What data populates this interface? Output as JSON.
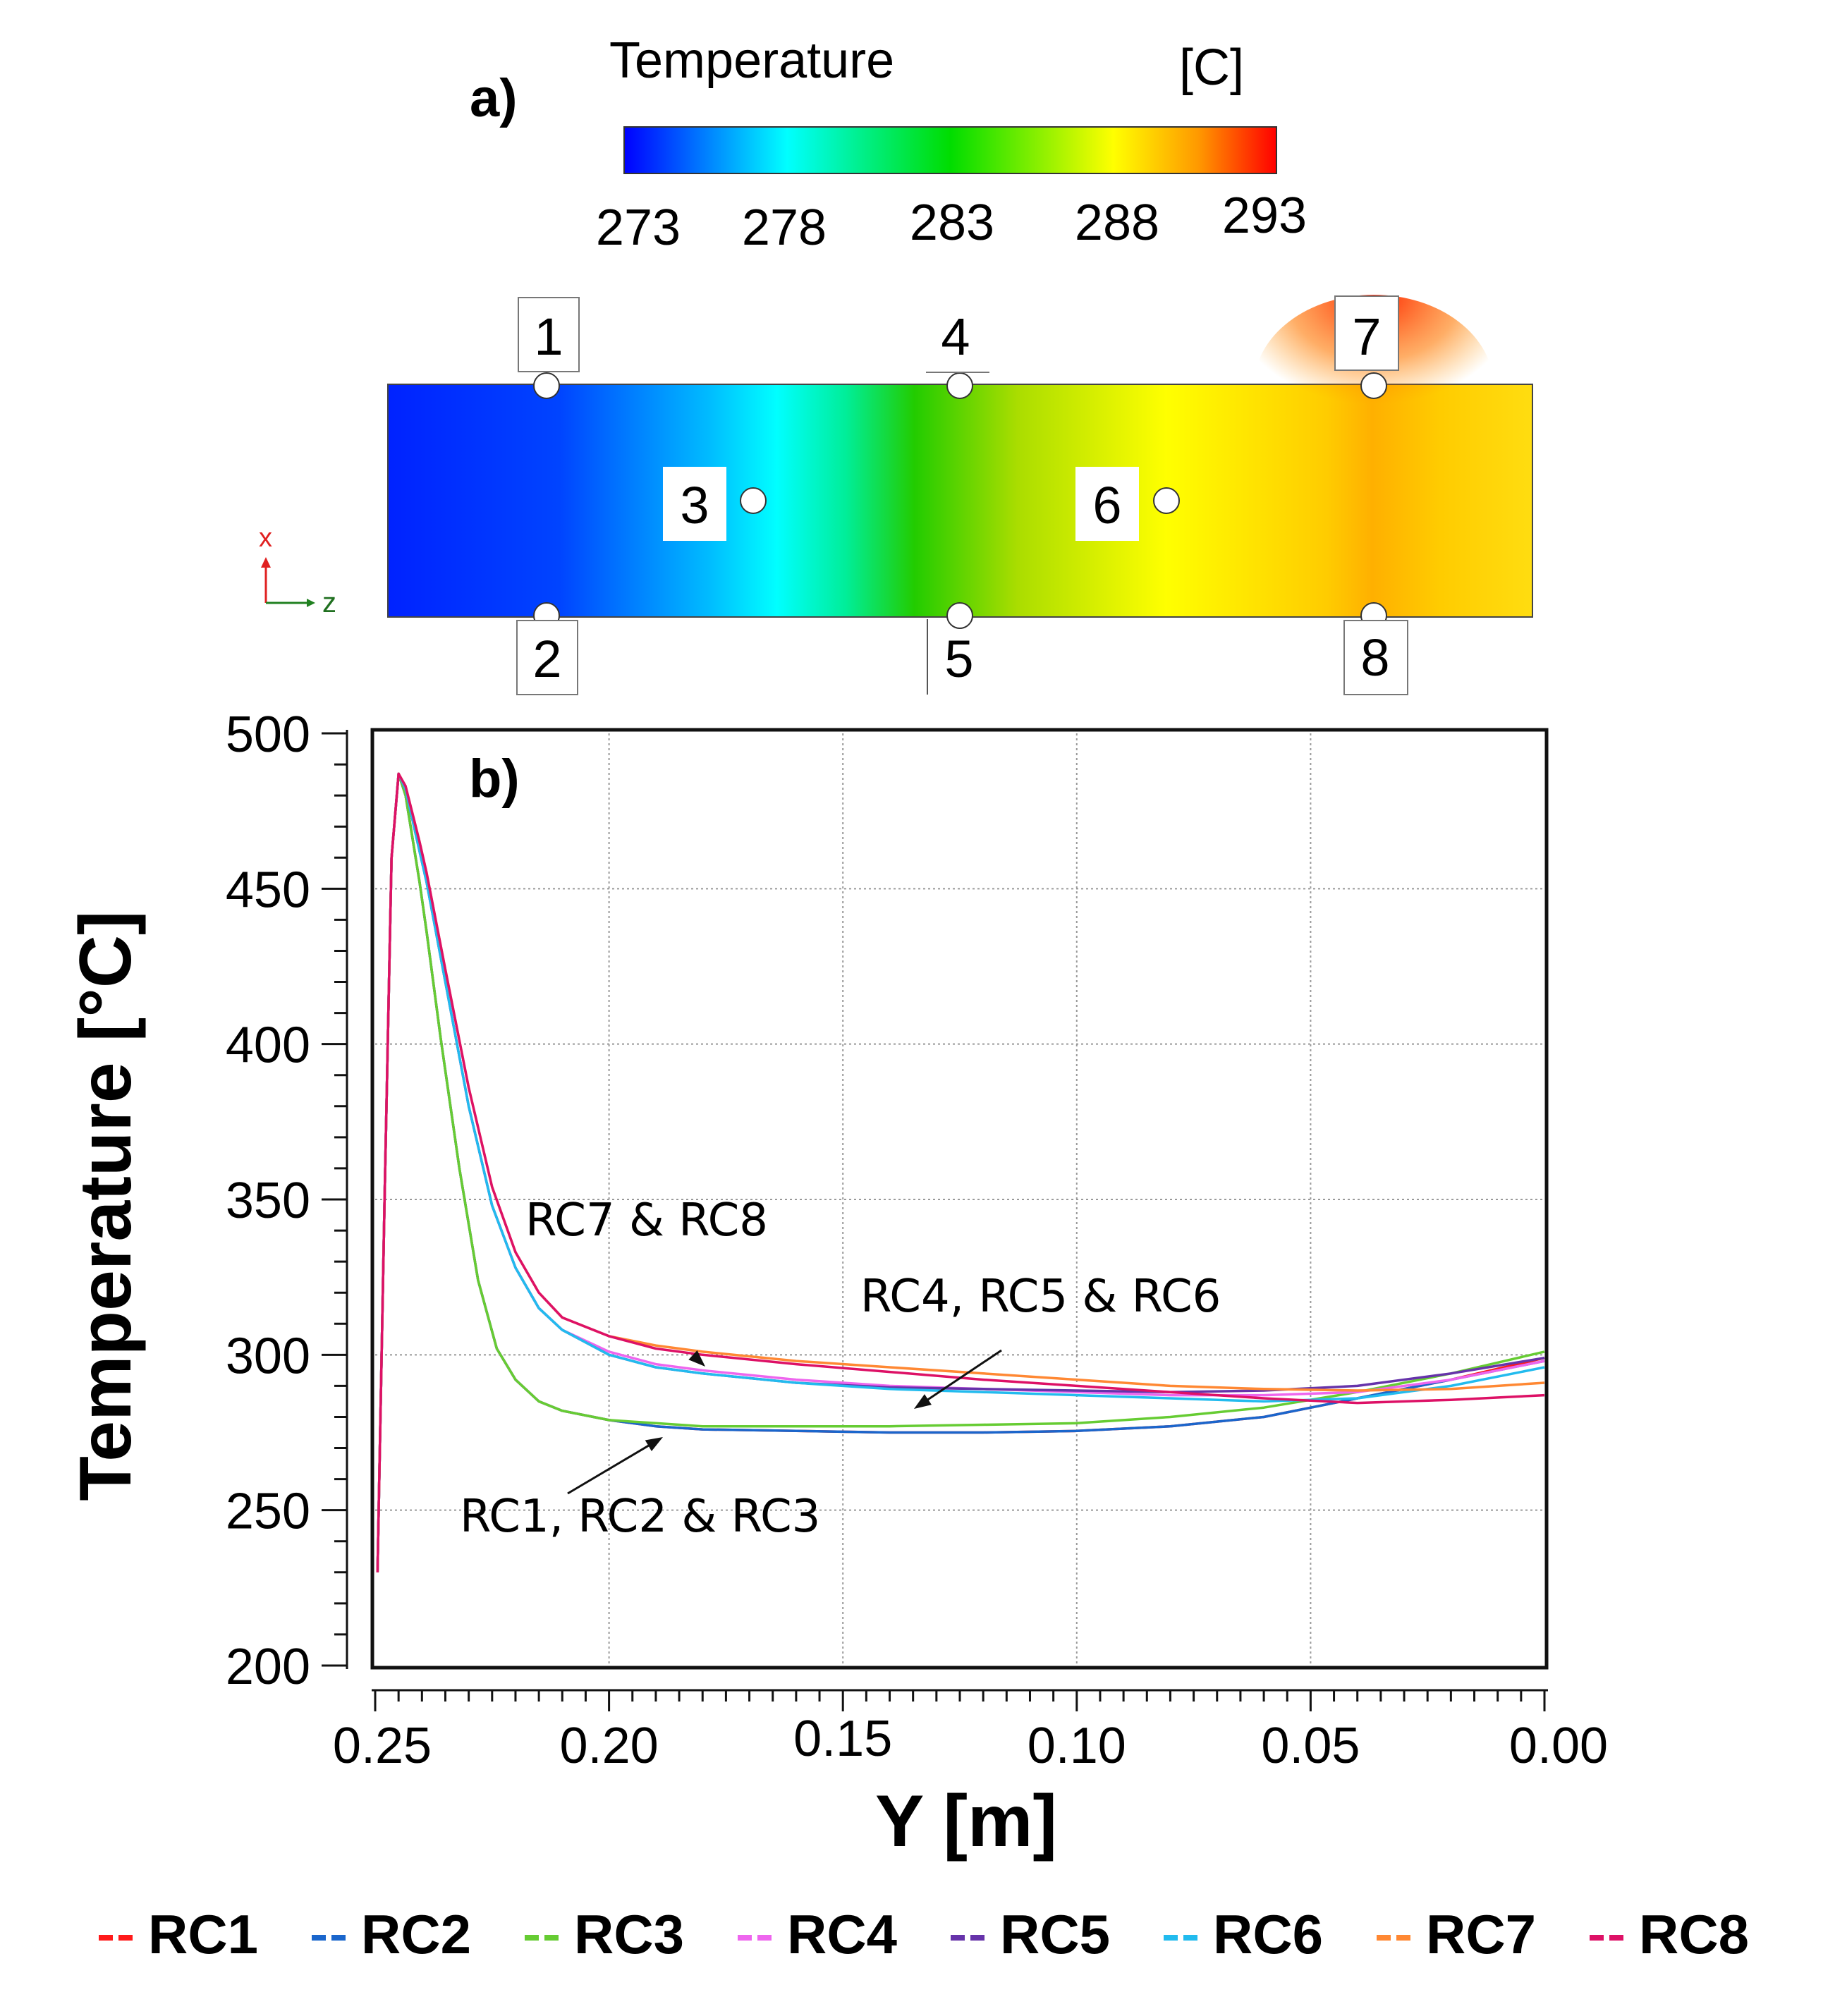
{
  "panel_a": {
    "label": "a)",
    "colorbar": {
      "title": "Temperature",
      "unit": "[C]",
      "ticks": [
        "273",
        "278",
        "283",
        "288",
        "293"
      ],
      "range": [
        273,
        293
      ],
      "colors": [
        "#0000ff",
        "#00ffff",
        "#00e000",
        "#ffff00",
        "#ff8000",
        "#ff0000"
      ]
    },
    "axis_labels": {
      "x": "x",
      "z": "z"
    },
    "sensors": [
      {
        "id": "1",
        "label": "1"
      },
      {
        "id": "2",
        "label": "2"
      },
      {
        "id": "3",
        "label": "3"
      },
      {
        "id": "4",
        "label": "4"
      },
      {
        "id": "5",
        "label": "5"
      },
      {
        "id": "6",
        "label": "6"
      },
      {
        "id": "7",
        "label": "7"
      },
      {
        "id": "8",
        "label": "8"
      }
    ]
  },
  "chart_data": {
    "type": "line",
    "panel_label": "b)",
    "xlabel": "Y [m]",
    "ylabel": "Temperature [°C]",
    "xlim": [
      0.25,
      0.0
    ],
    "ylim": [
      200,
      500
    ],
    "xticks": [
      0.25,
      0.2,
      0.15,
      0.1,
      0.05,
      0.0
    ],
    "xtick_labels": [
      "0.25",
      "0.20",
      "0.15",
      "0.10",
      "0.05",
      "0.00"
    ],
    "yticks": [
      200,
      250,
      300,
      350,
      400,
      450,
      500
    ],
    "ytick_labels": [
      "200",
      "250",
      "300",
      "350",
      "400",
      "450",
      "500"
    ],
    "grid": true,
    "legend_position": "bottom",
    "annotations": [
      {
        "text": "RC7  &  RC8",
        "x": 0.18,
        "y": 313,
        "arrow_to": [
          0.18,
          302
        ]
      },
      {
        "text": "RC4, RC5  &  RC6",
        "x": 0.11,
        "y": 289,
        "arrow_to": [
          0.137,
          289
        ]
      },
      {
        "text": "RC1, RC2 & RC3",
        "x": 0.145,
        "y": 252,
        "arrow_to": [
          0.19,
          278
        ]
      }
    ],
    "series": [
      {
        "name": "RC1",
        "color": "#ff1a1a",
        "x": [
          0.2495,
          0.248,
          0.2465,
          0.245,
          0.2435,
          0.242,
          0.2405,
          0.239,
          0.236,
          0.232,
          0.228,
          0.224,
          0.22,
          0.215,
          0.21,
          0.2,
          0.19,
          0.18,
          0.16,
          0.14,
          0.12,
          0.1,
          0.08,
          0.06,
          0.04,
          0.02,
          0.0
        ],
        "y": [
          230,
          350,
          460,
          487,
          480,
          466,
          452,
          436,
          402,
          360,
          324,
          302,
          292,
          285,
          282,
          279,
          277,
          276,
          275.5,
          275,
          275,
          275.5,
          277,
          280,
          286,
          292,
          299
        ]
      },
      {
        "name": "RC2",
        "color": "#1a66cc",
        "x": [
          0.2495,
          0.248,
          0.2465,
          0.245,
          0.2435,
          0.242,
          0.2405,
          0.239,
          0.236,
          0.232,
          0.228,
          0.224,
          0.22,
          0.215,
          0.21,
          0.2,
          0.19,
          0.18,
          0.16,
          0.14,
          0.12,
          0.1,
          0.08,
          0.06,
          0.04,
          0.02,
          0.0
        ],
        "y": [
          230,
          350,
          460,
          487,
          480,
          466,
          452,
          436,
          402,
          360,
          324,
          302,
          292,
          285,
          282,
          279,
          277,
          276,
          275.5,
          275,
          275,
          275.5,
          277,
          280,
          286,
          292,
          298
        ]
      },
      {
        "name": "RC3",
        "color": "#66cc33",
        "x": [
          0.2495,
          0.248,
          0.2465,
          0.245,
          0.2435,
          0.242,
          0.2405,
          0.239,
          0.236,
          0.232,
          0.228,
          0.224,
          0.22,
          0.215,
          0.21,
          0.2,
          0.19,
          0.18,
          0.16,
          0.14,
          0.12,
          0.1,
          0.08,
          0.06,
          0.04,
          0.02,
          0.0
        ],
        "y": [
          230,
          350,
          460,
          487,
          480,
          466,
          452,
          436,
          402,
          360,
          324,
          302,
          292,
          285,
          282,
          279,
          278,
          277,
          277,
          277,
          277.5,
          278,
          280,
          283,
          288,
          294,
          301
        ]
      },
      {
        "name": "RC4",
        "color": "#ee66ee",
        "x": [
          0.2495,
          0.248,
          0.2465,
          0.245,
          0.2435,
          0.242,
          0.2405,
          0.239,
          0.235,
          0.23,
          0.225,
          0.22,
          0.215,
          0.21,
          0.2,
          0.19,
          0.18,
          0.16,
          0.14,
          0.12,
          0.1,
          0.08,
          0.06,
          0.04,
          0.02,
          0.0
        ],
        "y": [
          230,
          350,
          460,
          487,
          482,
          472,
          462,
          452,
          420,
          380,
          348,
          328,
          315,
          308,
          301,
          297,
          295,
          292,
          290,
          289,
          288,
          287,
          287,
          288,
          292,
          298
        ]
      },
      {
        "name": "RC5",
        "color": "#6633aa",
        "x": [
          0.2495,
          0.248,
          0.2465,
          0.245,
          0.2435,
          0.242,
          0.2405,
          0.239,
          0.235,
          0.23,
          0.225,
          0.22,
          0.215,
          0.21,
          0.2,
          0.19,
          0.18,
          0.16,
          0.14,
          0.12,
          0.1,
          0.08,
          0.06,
          0.04,
          0.02,
          0.0
        ],
        "y": [
          230,
          350,
          460,
          487,
          482,
          472,
          462,
          452,
          420,
          380,
          348,
          328,
          315,
          308,
          300,
          296,
          294,
          291,
          289.5,
          289,
          288.5,
          288,
          288.5,
          290,
          294,
          299
        ]
      },
      {
        "name": "RC6",
        "color": "#22bbee",
        "x": [
          0.2495,
          0.248,
          0.2465,
          0.245,
          0.2435,
          0.242,
          0.2405,
          0.239,
          0.235,
          0.23,
          0.225,
          0.22,
          0.215,
          0.21,
          0.2,
          0.19,
          0.18,
          0.16,
          0.14,
          0.12,
          0.1,
          0.08,
          0.06,
          0.04,
          0.02,
          0.0
        ],
        "y": [
          230,
          350,
          460,
          487,
          482,
          472,
          462,
          452,
          420,
          380,
          348,
          328,
          315,
          308,
          300,
          296,
          294,
          291,
          289,
          288,
          287,
          286,
          285,
          286,
          290,
          296
        ]
      },
      {
        "name": "RC7",
        "color": "#ff8833",
        "x": [
          0.2495,
          0.248,
          0.2465,
          0.245,
          0.2435,
          0.242,
          0.2405,
          0.239,
          0.235,
          0.23,
          0.225,
          0.22,
          0.215,
          0.21,
          0.2,
          0.19,
          0.18,
          0.16,
          0.14,
          0.12,
          0.1,
          0.08,
          0.06,
          0.04,
          0.02,
          0.0
        ],
        "y": [
          230,
          350,
          460,
          487,
          483,
          474,
          465,
          455,
          424,
          386,
          354,
          333,
          320,
          312,
          306,
          303,
          301,
          298,
          296,
          294,
          292,
          290,
          289,
          288.5,
          289,
          291
        ]
      },
      {
        "name": "RC8",
        "color": "#dd1166",
        "x": [
          0.2495,
          0.248,
          0.2465,
          0.245,
          0.2435,
          0.242,
          0.2405,
          0.239,
          0.235,
          0.23,
          0.225,
          0.22,
          0.215,
          0.21,
          0.2,
          0.19,
          0.18,
          0.16,
          0.14,
          0.12,
          0.1,
          0.08,
          0.06,
          0.04,
          0.02,
          0.0
        ],
        "y": [
          230,
          350,
          460,
          487,
          483,
          474,
          465,
          455,
          424,
          386,
          354,
          333,
          320,
          312,
          306,
          302,
          300,
          297,
          294.5,
          292,
          290,
          288,
          286,
          284.5,
          285.5,
          287
        ]
      }
    ]
  }
}
